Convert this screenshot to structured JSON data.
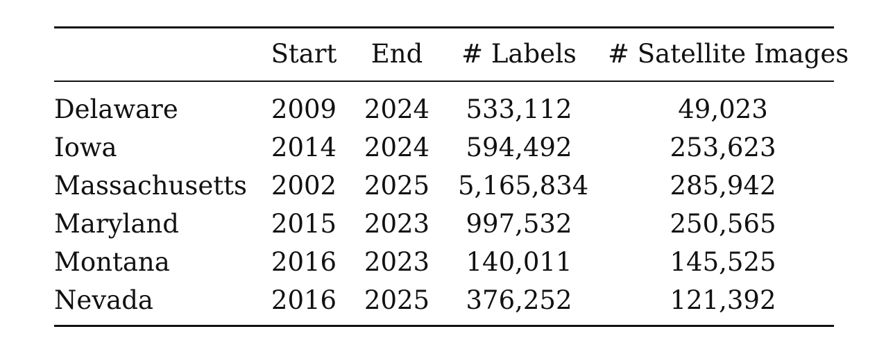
{
  "table": {
    "headers": {
      "name": "",
      "start": "Start",
      "end": "End",
      "labels": "# Labels",
      "images": "# Satellite Images"
    },
    "rows": [
      {
        "name": "Delaware",
        "start": "2009",
        "end": "2024",
        "labels": "533,112",
        "images": "49,023"
      },
      {
        "name": "Iowa",
        "start": "2014",
        "end": "2024",
        "labels": "594,492",
        "images": "253,623"
      },
      {
        "name": "Massachusetts",
        "start": "2002",
        "end": "2025",
        "labels": "5,165,834",
        "images": "285,942"
      },
      {
        "name": "Maryland",
        "start": "2015",
        "end": "2023",
        "labels": "997,532",
        "images": "250,565"
      },
      {
        "name": "Montana",
        "start": "2016",
        "end": "2023",
        "labels": "140,011",
        "images": "145,525"
      },
      {
        "name": "Nevada",
        "start": "2016",
        "end": "2025",
        "labels": "376,252",
        "images": "121,392"
      }
    ]
  }
}
